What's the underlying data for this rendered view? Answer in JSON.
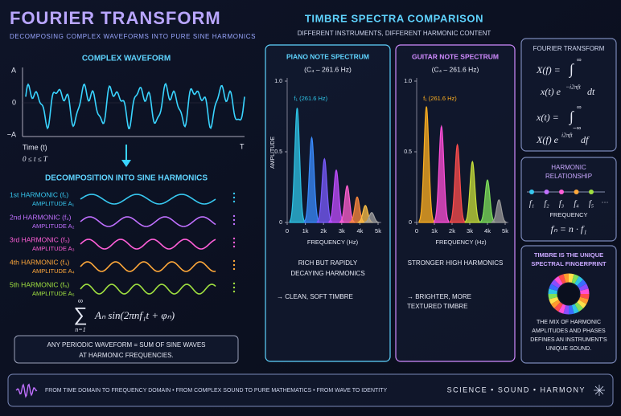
{
  "header": {
    "title": "FOURIER TRANSFORM",
    "subtitle": "DECOMPOSING COMPLEX WAVEFORMS INTO PURE SINE HARMONICS"
  },
  "waveform": {
    "title": "COMPLEX WAVEFORM",
    "y_labels": [
      "A",
      "0",
      "−A"
    ],
    "x_label": "Time (t)",
    "x_end": "T",
    "range": "0 ≤ t ≤ T"
  },
  "decomposition": {
    "title": "DECOMPOSITION INTO SINE HARMONICS",
    "harmonics": [
      {
        "name": "1st HARMONIC (f₁)",
        "amplitude": "AMPLITUDE A₁",
        "color": "#37c8f0"
      },
      {
        "name": "2nd HARMONIC (f₂)",
        "amplitude": "AMPLITUDE A₂",
        "color": "#c070ff"
      },
      {
        "name": "3rd HARMONIC (f₃)",
        "amplitude": "AMPLITUDE A₃",
        "color": "#ff5fd8"
      },
      {
        "name": "4th HARMONIC (f₄)",
        "amplitude": "AMPLITUDE A₄",
        "color": "#ffa83a"
      },
      {
        "name": "5th HARMONIC (f₅)",
        "amplitude": "AMPLITUDE A₅",
        "color": "#a0e040"
      }
    ],
    "sum_symbol": "∑",
    "sum_limits": [
      "∞",
      "n=1"
    ],
    "sum": "Aₙ sin(2πnf₁t + φₙ)",
    "note": [
      "ANY PERIODIC WAVEFORM = SUM OF SINE WAVES",
      "AT HARMONIC FREQUENCIES."
    ]
  },
  "spectra": {
    "title": "TIMBRE SPECTRA COMPARISON",
    "subtitle": "DIFFERENT INSTRUMENTS, DIFFERENT HARMONIC CONTENT"
  },
  "chart_data": [
    {
      "type": "spectrum",
      "title": "PIANO NOTE SPECTRUM",
      "subtitle": "(C₄ – 261.6 Hz)",
      "y_label": "AMPLITUDE",
      "x_label": "FREQUENCY (Hz)",
      "annotation": "f₁ (261.6 Hz)",
      "x": [
        550,
        1350,
        2050,
        2700,
        3300,
        3850,
        4300,
        4650
      ],
      "values": [
        0.81,
        0.6,
        0.45,
        0.37,
        0.26,
        0.18,
        0.12,
        0.07
      ],
      "colors": [
        "#2ec4e6",
        "#3a8cff",
        "#7a5cff",
        "#c04dff",
        "#ff5fd0",
        "#ff8a3d",
        "#ffc247",
        "#a0a0a0"
      ],
      "xlim": [
        0,
        5000
      ],
      "xticks": [
        0,
        {
          "value": 1000,
          "label": "1k"
        },
        {
          "value": 2000,
          "label": "2k"
        },
        {
          "value": 3000,
          "label": "3k"
        },
        {
          "value": 4000,
          "label": "4k"
        },
        {
          "value": 5000,
          "label": "5k"
        }
      ],
      "ylim": [
        0,
        1
      ],
      "yticks": [
        0,
        0.5,
        {
          "value": 1,
          "label": "1.0"
        }
      ],
      "border_color": "#5fd4ff",
      "caption": [
        "RICH BUT RAPIDLY",
        "DECAYING HARMONICS"
      ],
      "result": [
        "→ CLEAN, SOFT TIMBRE"
      ]
    },
    {
      "type": "spectrum",
      "title": "GUITAR NOTE SPECTRUM",
      "subtitle": "(C₄ – 261.6 Hz)",
      "x_label": "FREQUENCY (Hz)",
      "annotation": "f₁ (261.6 Hz)",
      "x": [
        550,
        1400,
        2300,
        3150,
        4000,
        4650
      ],
      "values": [
        0.82,
        0.68,
        0.55,
        0.43,
        0.3,
        0.16
      ],
      "colors": [
        "#ffb020",
        "#ff4fd8",
        "#ff4d4d",
        "#c8e03a",
        "#7ee05a",
        "#9a9a9a"
      ],
      "xlim": [
        0,
        5000
      ],
      "xticks": [
        0,
        {
          "value": 1000,
          "label": "1k"
        },
        {
          "value": 2000,
          "label": "2k"
        },
        {
          "value": 3000,
          "label": "3k"
        },
        {
          "value": 4000,
          "label": "4k"
        },
        {
          "value": 5000,
          "label": "5k"
        }
      ],
      "ylim": [
        0,
        1
      ],
      "yticks": [
        0,
        0.5,
        {
          "value": 1,
          "label": "1.0"
        }
      ],
      "border_color": "#d08bff",
      "caption": [
        "STRONGER HIGH HARMONICS"
      ],
      "result": [
        "→ BRIGHTER, MORE",
        "TEXTURED TIMBRE"
      ]
    }
  ],
  "sidebar": {
    "fourier": {
      "title": "FOURIER TRANSFORM",
      "lines": [
        {
          "base": "X(f) =",
          "integral": "∫",
          "upper": "∞"
        },
        {
          "base": "x(t) e",
          "exp": "−i2πft",
          "tail": "dt"
        },
        {
          "base": "x(t) =",
          "integral": "∫",
          "upper": "∞",
          "lower": "−∞"
        },
        {
          "base": "X(f) e",
          "exp": "i2πft",
          "tail": "df"
        }
      ]
    },
    "relationship": {
      "title": [
        "HARMONIC",
        "RELATIONSHIP"
      ],
      "labels": [
        "f₁",
        "f₂",
        "f₃",
        "f₄",
        "f₅"
      ],
      "more": "···",
      "axis": "FREQUENCY",
      "formula": "fₙ = n · f₁"
    },
    "fingerprint": {
      "title": [
        "TIMBRE IS THE UNIQUE",
        "SPECTRAL FINGERPRINT"
      ],
      "text": [
        "THE MIX OF HARMONIC",
        "AMPLITUDES AND PHASES",
        "DEFINES AN INSTRUMENT'S",
        "UNIQUE SOUND."
      ]
    }
  },
  "footer": {
    "text": "FROM TIME DOMAIN TO FREQUENCY DOMAIN • FROM COMPLEX SOUND TO PURE MATHEMATICS • FROM WAVE TO IDENTITY",
    "tagline": "SCIENCE • SOUND • HARMONY"
  }
}
